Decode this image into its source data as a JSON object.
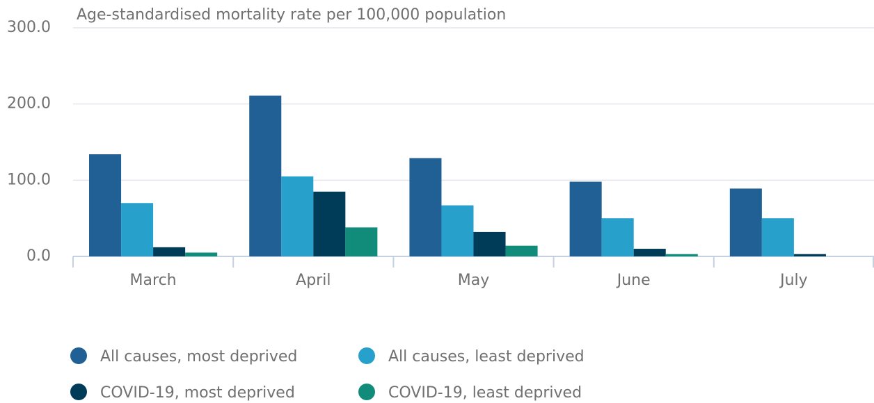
{
  "chart_data": {
    "type": "bar",
    "title": "Age-standardised mortality rate per 100,000 population",
    "categories": [
      "March",
      "April",
      "May",
      "June",
      "July"
    ],
    "series": [
      {
        "name": "All causes, most deprived",
        "color": "#206095",
        "values": [
          134,
          211,
          129,
          98,
          89
        ]
      },
      {
        "name": "All causes, least deprived",
        "color": "#27a0cc",
        "values": [
          70,
          105,
          67,
          50,
          50
        ]
      },
      {
        "name": "COVID-19, most deprived",
        "color": "#003c57",
        "values": [
          12,
          85,
          32,
          10,
          3
        ]
      },
      {
        "name": "COVID-19, least deprived",
        "color": "#118c7b",
        "values": [
          5,
          38,
          14,
          3,
          0
        ]
      }
    ],
    "ylim": [
      0,
      300
    ],
    "yticks": [
      {
        "value": 0,
        "label": "0.0"
      },
      {
        "value": 100,
        "label": "100.0"
      },
      {
        "value": 200,
        "label": "200.0"
      },
      {
        "value": 300,
        "label": "300.0"
      }
    ],
    "grid": true,
    "legend": "bottom"
  }
}
